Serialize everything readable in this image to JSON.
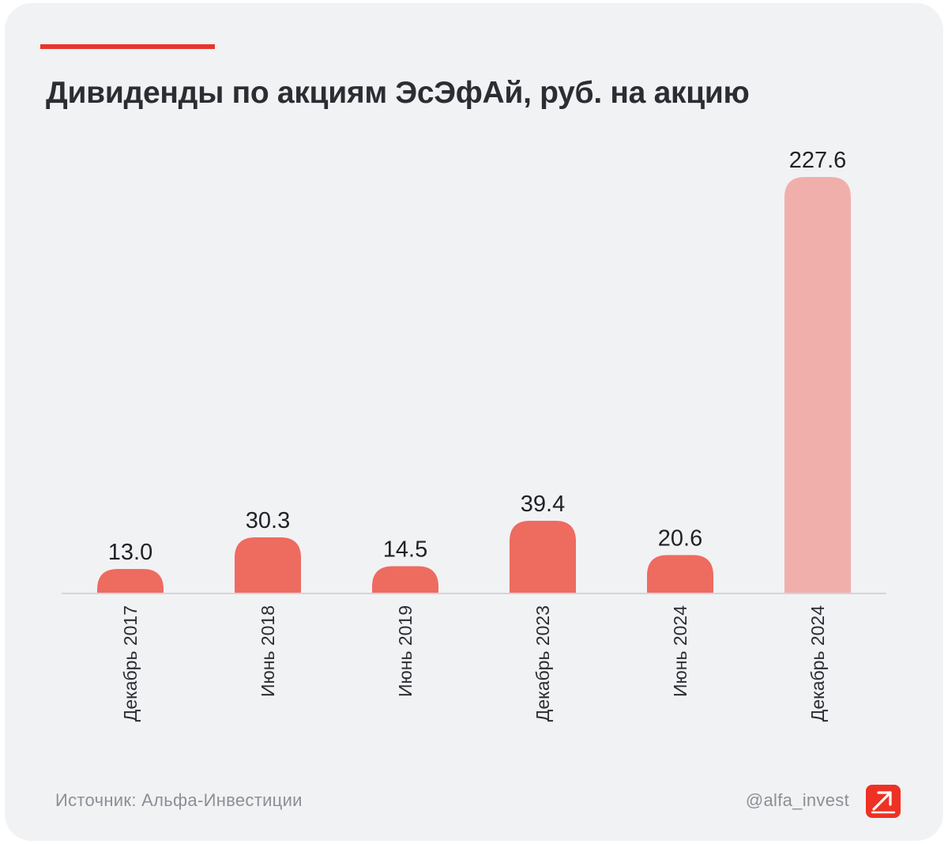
{
  "title": "Дивиденды по акциям ЭсЭфАй, руб. на акцию",
  "footer": {
    "source": "Источник: Альфа-Инвестиции",
    "handle": "@alfa_invest"
  },
  "colors": {
    "accent": "#e8352b",
    "bar": "#ee6b60",
    "bar_highlight": "#f1afac",
    "text": "#2b2d33",
    "muted": "#8c8f96",
    "background": "#f1f2f4"
  },
  "icons": {
    "logo": "alfa-arrow-icon"
  },
  "chart_data": {
    "type": "bar",
    "title": "Дивиденды по акциям ЭсЭфАй, руб. на акцию",
    "categories": [
      "Декабрь 2017",
      "Июнь 2018",
      "Июнь 2019",
      "Декабрь 2023",
      "Июнь 2024",
      "Декабрь 2024"
    ],
    "values": [
      13.0,
      30.3,
      14.5,
      39.4,
      20.6,
      227.6
    ],
    "value_labels": [
      "13.0",
      "30.3",
      "14.5",
      "39.4",
      "20.6",
      "227.6"
    ],
    "highlighted": [
      false,
      false,
      false,
      false,
      false,
      true
    ],
    "xlabel": "",
    "ylabel": "",
    "ylim": [
      0,
      227.6
    ],
    "grid": false,
    "legend": "none"
  }
}
